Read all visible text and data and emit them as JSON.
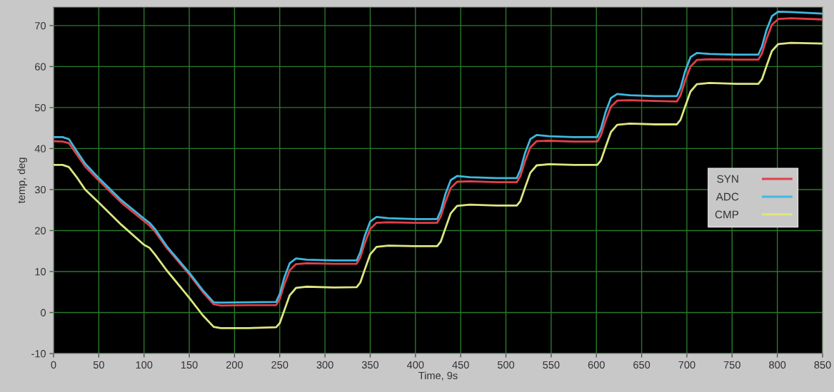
{
  "chart_data": {
    "type": "line",
    "xlabel": "Time, 9s",
    "ylabel": "temp, deg",
    "x": [
      0,
      10,
      17,
      25,
      35,
      50,
      75,
      100,
      106,
      112,
      125,
      150,
      165,
      177,
      185,
      215,
      246,
      250,
      255,
      261,
      268,
      280,
      310,
      335,
      339,
      344,
      350,
      357,
      370,
      400,
      424,
      428,
      433,
      439,
      446,
      460,
      490,
      512,
      516,
      521,
      527,
      534,
      548,
      575,
      601,
      605,
      610,
      616,
      623,
      637,
      665,
      689,
      693,
      698,
      704,
      711,
      725,
      755,
      779,
      783,
      788,
      794,
      801,
      815,
      850
    ],
    "series": [
      {
        "name": "SYN",
        "color": "#e0404a",
        "values": [
          41.8,
          41.7,
          41.3,
          38.8,
          35.6,
          32.2,
          26.8,
          22.3,
          21.2,
          19.8,
          15.8,
          9.3,
          5.0,
          2.0,
          1.7,
          1.8,
          1.8,
          3.3,
          6.8,
          10.3,
          11.8,
          12.0,
          11.9,
          11.9,
          13.4,
          16.9,
          20.4,
          21.9,
          22.0,
          21.9,
          21.9,
          23.4,
          26.9,
          30.4,
          31.9,
          32.0,
          31.8,
          31.8,
          33.3,
          36.8,
          40.3,
          41.8,
          41.9,
          41.7,
          41.7,
          43.2,
          46.7,
          50.2,
          51.7,
          51.8,
          51.6,
          51.5,
          53.0,
          56.5,
          60.0,
          61.6,
          61.8,
          61.7,
          61.7,
          63.2,
          66.7,
          70.2,
          71.6,
          71.8,
          71.5
        ]
      },
      {
        "name": "ADC",
        "color": "#3fb8e0",
        "values": [
          42.8,
          42.8,
          42.3,
          39.6,
          36.3,
          32.8,
          27.4,
          22.9,
          21.9,
          20.4,
          16.2,
          9.7,
          5.4,
          2.5,
          2.4,
          2.5,
          2.6,
          4.5,
          8.5,
          12.0,
          13.2,
          12.9,
          12.7,
          12.7,
          14.7,
          18.7,
          22.2,
          23.3,
          23.0,
          22.8,
          22.8,
          24.8,
          28.8,
          32.3,
          33.3,
          33.0,
          32.8,
          32.8,
          34.8,
          38.8,
          42.3,
          43.3,
          43.0,
          42.8,
          42.8,
          44.8,
          48.8,
          52.3,
          53.3,
          53.0,
          52.8,
          52.8,
          54.8,
          58.8,
          62.3,
          63.3,
          63.1,
          62.9,
          62.9,
          64.9,
          68.9,
          72.3,
          73.4,
          73.3,
          72.9
        ]
      },
      {
        "name": "CMP",
        "color": "#dde680",
        "values": [
          36.0,
          36.0,
          35.5,
          33.2,
          30.0,
          26.8,
          21.4,
          16.5,
          15.8,
          14.2,
          10.3,
          3.6,
          -0.7,
          -3.5,
          -3.8,
          -3.8,
          -3.6,
          -2.6,
          0.5,
          4.2,
          6.0,
          6.3,
          6.1,
          6.2,
          7.3,
          10.5,
          14.2,
          16.0,
          16.3,
          16.2,
          16.2,
          17.3,
          20.5,
          24.2,
          26.0,
          26.3,
          26.1,
          26.1,
          27.2,
          30.4,
          34.1,
          35.9,
          36.2,
          36.0,
          36.0,
          37.1,
          40.3,
          44.0,
          45.8,
          46.1,
          45.9,
          45.9,
          47.0,
          50.2,
          53.9,
          55.7,
          56.0,
          55.8,
          55.8,
          56.9,
          60.1,
          63.8,
          65.5,
          65.8,
          65.6
        ]
      }
    ],
    "xlim": [
      0,
      850
    ],
    "xticks": [
      0,
      50,
      100,
      150,
      200,
      250,
      300,
      350,
      400,
      450,
      500,
      550,
      600,
      650,
      700,
      750,
      800,
      850
    ],
    "ylim": [
      -10,
      74.5
    ],
    "yticks": [
      -10,
      0,
      10,
      20,
      30,
      40,
      50,
      60,
      70
    ],
    "grid": true,
    "legend": "right"
  }
}
